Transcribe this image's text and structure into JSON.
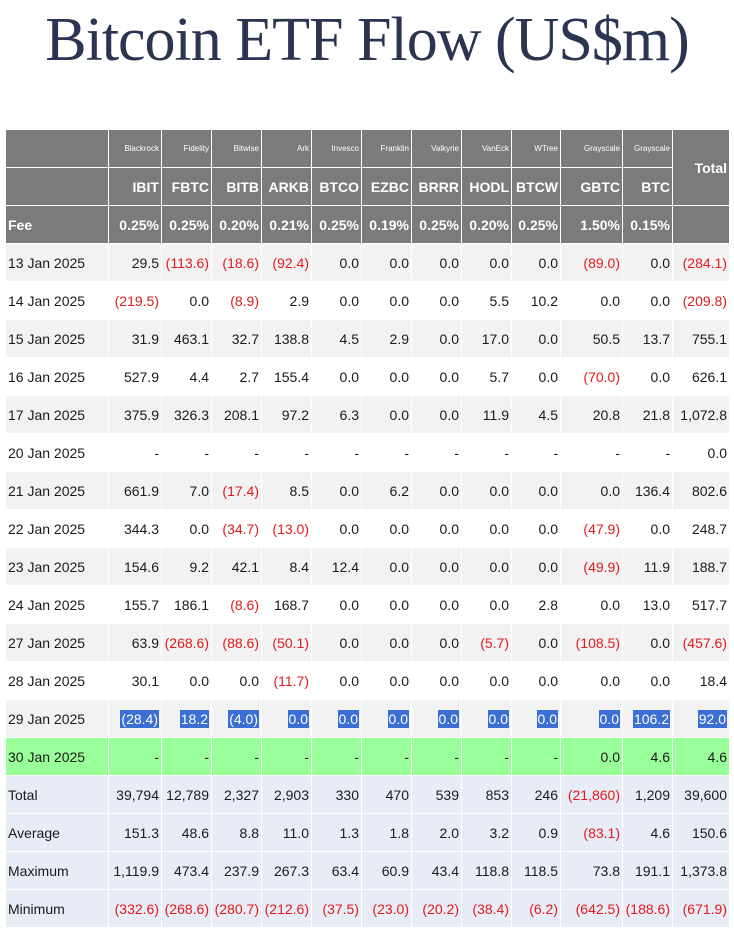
{
  "title": "Bitcoin ETF Flow (US$m)",
  "header": {
    "issuers": [
      "Blackrock",
      "Fidelity",
      "Bitwise",
      "Ark",
      "Invesco",
      "Franklin",
      "Valkyrie",
      "VanEck",
      "WTree",
      "Grayscale",
      "Grayscale"
    ],
    "tickers": [
      "IBIT",
      "FBTC",
      "BITB",
      "ARKB",
      "BTCO",
      "EZBC",
      "BRRR",
      "HODL",
      "BTCW",
      "GBTC",
      "BTC"
    ],
    "total_label": "Total",
    "fee_label": "Fee",
    "fees": [
      "0.25%",
      "0.25%",
      "0.20%",
      "0.21%",
      "0.25%",
      "0.19%",
      "0.25%",
      "0.20%",
      "0.25%",
      "1.50%",
      "0.15%"
    ]
  },
  "rows": [
    {
      "date": "13 Jan 2025",
      "values": [
        "29.5",
        "(113.6)",
        "(18.6)",
        "(92.4)",
        "0.0",
        "0.0",
        "0.0",
        "0.0",
        "0.0",
        "(89.0)",
        "0.0"
      ],
      "total": "(284.1)"
    },
    {
      "date": "14 Jan 2025",
      "values": [
        "(219.5)",
        "0.0",
        "(8.9)",
        "2.9",
        "0.0",
        "0.0",
        "0.0",
        "5.5",
        "10.2",
        "0.0",
        "0.0"
      ],
      "total": "(209.8)"
    },
    {
      "date": "15 Jan 2025",
      "values": [
        "31.9",
        "463.1",
        "32.7",
        "138.8",
        "4.5",
        "2.9",
        "0.0",
        "17.0",
        "0.0",
        "50.5",
        "13.7"
      ],
      "total": "755.1"
    },
    {
      "date": "16 Jan 2025",
      "values": [
        "527.9",
        "4.4",
        "2.7",
        "155.4",
        "0.0",
        "0.0",
        "0.0",
        "5.7",
        "0.0",
        "(70.0)",
        "0.0"
      ],
      "total": "626.1"
    },
    {
      "date": "17 Jan 2025",
      "values": [
        "375.9",
        "326.3",
        "208.1",
        "97.2",
        "6.3",
        "0.0",
        "0.0",
        "11.9",
        "4.5",
        "20.8",
        "21.8"
      ],
      "total": "1,072.8"
    },
    {
      "date": "20 Jan 2025",
      "values": [
        "-",
        "-",
        "-",
        "-",
        "-",
        "-",
        "-",
        "-",
        "-",
        "-",
        "-"
      ],
      "total": "0.0"
    },
    {
      "date": "21 Jan 2025",
      "values": [
        "661.9",
        "7.0",
        "(17.4)",
        "8.5",
        "0.0",
        "6.2",
        "0.0",
        "0.0",
        "0.0",
        "0.0",
        "136.4"
      ],
      "total": "802.6"
    },
    {
      "date": "22 Jan 2025",
      "values": [
        "344.3",
        "0.0",
        "(34.7)",
        "(13.0)",
        "0.0",
        "0.0",
        "0.0",
        "0.0",
        "0.0",
        "(47.9)",
        "0.0"
      ],
      "total": "248.7"
    },
    {
      "date": "23 Jan 2025",
      "values": [
        "154.6",
        "9.2",
        "42.1",
        "8.4",
        "12.4",
        "0.0",
        "0.0",
        "0.0",
        "0.0",
        "(49.9)",
        "11.9"
      ],
      "total": "188.7"
    },
    {
      "date": "24 Jan 2025",
      "values": [
        "155.7",
        "186.1",
        "(8.6)",
        "168.7",
        "0.0",
        "0.0",
        "0.0",
        "0.0",
        "2.8",
        "0.0",
        "13.0"
      ],
      "total": "517.7"
    },
    {
      "date": "27 Jan 2025",
      "values": [
        "63.9",
        "(268.6)",
        "(88.6)",
        "(50.1)",
        "0.0",
        "0.0",
        "0.0",
        "(5.7)",
        "0.0",
        "(108.5)",
        "0.0"
      ],
      "total": "(457.6)"
    },
    {
      "date": "28 Jan 2025",
      "values": [
        "30.1",
        "0.0",
        "0.0",
        "(11.7)",
        "0.0",
        "0.0",
        "0.0",
        "0.0",
        "0.0",
        "0.0",
        "0.0"
      ],
      "total": "18.4"
    },
    {
      "date": "29 Jan 2025",
      "values": [
        "(28.4)",
        "18.2",
        "(4.0)",
        "0.0",
        "0.0",
        "0.0",
        "0.0",
        "0.0",
        "0.0",
        "0.0",
        "106.2"
      ],
      "total": "92.0",
      "highlight": true
    },
    {
      "date": "30 Jan 2025",
      "values": [
        "-",
        "-",
        "-",
        "-",
        "-",
        "-",
        "-",
        "-",
        "-",
        "0.0",
        "4.6"
      ],
      "total": "4.6",
      "green": true
    }
  ],
  "summary": [
    {
      "label": "Total",
      "values": [
        "39,794",
        "12,789",
        "2,327",
        "2,903",
        "330",
        "470",
        "539",
        "853",
        "246",
        "(21,860)",
        "1,209"
      ],
      "total": "39,600"
    },
    {
      "label": "Average",
      "values": [
        "151.3",
        "48.6",
        "8.8",
        "11.0",
        "1.3",
        "1.8",
        "2.0",
        "3.2",
        "0.9",
        "(83.1)",
        "4.6"
      ],
      "total": "150.6"
    },
    {
      "label": "Maximum",
      "values": [
        "1,119.9",
        "473.4",
        "237.9",
        "267.3",
        "63.4",
        "60.9",
        "43.4",
        "118.8",
        "118.5",
        "73.8",
        "191.1"
      ],
      "total": "1,373.8"
    },
    {
      "label": "Minimum",
      "values": [
        "(332.6)",
        "(268.6)",
        "(280.7)",
        "(212.6)",
        "(37.5)",
        "(23.0)",
        "(20.2)",
        "(38.4)",
        "(6.2)",
        "(642.5)",
        "(188.6)"
      ],
      "total": "(671.9)"
    }
  ],
  "colors": {
    "header_bg": "#7b7b7b",
    "negative": "#e31a1c",
    "highlight_bg": "#3b6fd4",
    "green_row": "#99ff99",
    "summary_bg": "#e7ecf7",
    "title": "#2b3450"
  }
}
